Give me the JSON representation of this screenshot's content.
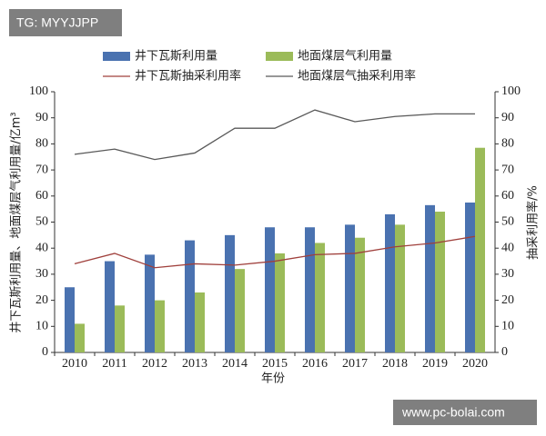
{
  "chart_data": {
    "type": "bar",
    "categories": [
      "2010",
      "2011",
      "2012",
      "2013",
      "2014",
      "2015",
      "2016",
      "2017",
      "2018",
      "2019",
      "2020"
    ],
    "x_label": "年份",
    "y_label": "井下瓦斯利用量、地面煤层气利用量/亿m³",
    "y2_label": "抽采利用率/%",
    "ylim": [
      0,
      100
    ],
    "yticks": [
      0,
      10,
      20,
      30,
      40,
      50,
      60,
      70,
      80,
      90,
      100
    ],
    "y2lim": [
      0,
      100
    ],
    "y2ticks": [
      0,
      10,
      20,
      30,
      40,
      50,
      60,
      70,
      80,
      90,
      100
    ],
    "series": [
      {
        "name": "井下瓦斯利用量",
        "type": "bar",
        "color": "#4a72b0",
        "values": [
          25,
          35,
          37.5,
          43,
          45,
          48,
          48,
          49,
          53,
          56.5,
          57.5
        ]
      },
      {
        "name": "地面煤层气利用量",
        "type": "bar",
        "color": "#9bbb59",
        "values": [
          11,
          18,
          20,
          23,
          32,
          38,
          42,
          44,
          49,
          54,
          78.5
        ]
      },
      {
        "name": "井下瓦斯抽采利用率",
        "type": "line",
        "axis": "y2",
        "color": "#a0403c",
        "values": [
          34,
          38,
          32.5,
          34,
          33.5,
          35,
          37.5,
          38,
          40.5,
          42,
          44.5
        ]
      },
      {
        "name": "地面煤层气抽采利用率",
        "type": "line",
        "axis": "y2",
        "color": "#595959",
        "values": [
          76,
          78,
          74,
          76.5,
          86,
          86,
          93,
          88.5,
          90.5,
          91.5,
          91.5
        ]
      }
    ]
  },
  "watermarks": [
    "TG: MYYJJPP",
    "www.pc-bolai.com"
  ]
}
